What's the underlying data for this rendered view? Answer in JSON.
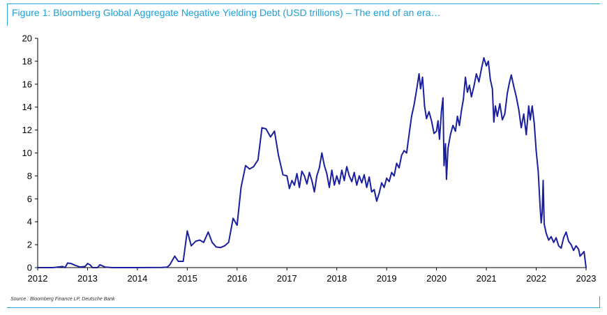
{
  "title": "Figure 1: Bloomberg Global Aggregate Negative Yielding Debt (USD trillions) – The end of an era…",
  "source": "Source : Bloomberg Finance LP, Deutsche Bank",
  "colors": {
    "line": "#1a1f9e",
    "accent": "#1ba1d9",
    "axis": "#000000"
  },
  "chart_data": {
    "type": "line",
    "title": "Figure 1: Bloomberg Global Aggregate Negative Yielding Debt (USD trillions) – The end of an era…",
    "xlabel": "",
    "ylabel": "",
    "xlim": [
      2012,
      2023
    ],
    "ylim": [
      0,
      20
    ],
    "x_ticks": [
      2012,
      2013,
      2014,
      2015,
      2016,
      2017,
      2018,
      2019,
      2020,
      2021,
      2022,
      2023
    ],
    "y_ticks": [
      0,
      2,
      4,
      6,
      8,
      10,
      12,
      14,
      16,
      18,
      20
    ],
    "grid": false,
    "legend": "none",
    "series": [
      {
        "values": [
          [
            2012.0,
            0.0
          ],
          [
            2012.3,
            0.0
          ],
          [
            2012.4,
            0.05
          ],
          [
            2012.5,
            0.1
          ],
          [
            2012.55,
            0.0
          ],
          [
            2012.6,
            0.4
          ],
          [
            2012.67,
            0.35
          ],
          [
            2012.75,
            0.2
          ],
          [
            2012.85,
            0.05
          ],
          [
            2012.95,
            0.1
          ],
          [
            2013.0,
            0.35
          ],
          [
            2013.05,
            0.25
          ],
          [
            2013.1,
            0.0
          ],
          [
            2013.2,
            0.0
          ],
          [
            2013.25,
            0.25
          ],
          [
            2013.35,
            0.05
          ],
          [
            2013.5,
            0.0
          ],
          [
            2014.0,
            0.0
          ],
          [
            2014.5,
            0.02
          ],
          [
            2014.6,
            0.05
          ],
          [
            2014.65,
            0.25
          ],
          [
            2014.75,
            1.0
          ],
          [
            2014.82,
            0.55
          ],
          [
            2014.92,
            0.55
          ],
          [
            2015.0,
            3.2
          ],
          [
            2015.08,
            1.9
          ],
          [
            2015.17,
            2.3
          ],
          [
            2015.25,
            2.4
          ],
          [
            2015.33,
            2.2
          ],
          [
            2015.42,
            3.1
          ],
          [
            2015.5,
            2.2
          ],
          [
            2015.58,
            1.8
          ],
          [
            2015.67,
            1.75
          ],
          [
            2015.75,
            1.9
          ],
          [
            2015.83,
            2.2
          ],
          [
            2015.92,
            4.3
          ],
          [
            2016.0,
            3.7
          ],
          [
            2016.08,
            7.0
          ],
          [
            2016.17,
            8.9
          ],
          [
            2016.25,
            8.6
          ],
          [
            2016.33,
            8.8
          ],
          [
            2016.42,
            9.4
          ],
          [
            2016.5,
            12.2
          ],
          [
            2016.58,
            12.1
          ],
          [
            2016.67,
            11.4
          ],
          [
            2016.75,
            11.9
          ],
          [
            2016.83,
            9.8
          ],
          [
            2016.92,
            8.1
          ],
          [
            2017.0,
            8.0
          ],
          [
            2017.05,
            6.9
          ],
          [
            2017.1,
            7.6
          ],
          [
            2017.15,
            7.2
          ],
          [
            2017.2,
            8.2
          ],
          [
            2017.25,
            7.0
          ],
          [
            2017.3,
            8.4
          ],
          [
            2017.35,
            8.0
          ],
          [
            2017.4,
            7.3
          ],
          [
            2017.45,
            8.3
          ],
          [
            2017.5,
            7.6
          ],
          [
            2017.55,
            6.6
          ],
          [
            2017.6,
            8.0
          ],
          [
            2017.65,
            8.7
          ],
          [
            2017.7,
            10.0
          ],
          [
            2017.75,
            8.9
          ],
          [
            2017.8,
            8.2
          ],
          [
            2017.85,
            7.0
          ],
          [
            2017.9,
            8.5
          ],
          [
            2017.95,
            7.2
          ],
          [
            2018.0,
            8.0
          ],
          [
            2018.05,
            7.3
          ],
          [
            2018.1,
            8.5
          ],
          [
            2018.15,
            7.6
          ],
          [
            2018.2,
            8.8
          ],
          [
            2018.25,
            8.0
          ],
          [
            2018.3,
            7.5
          ],
          [
            2018.35,
            8.3
          ],
          [
            2018.4,
            7.2
          ],
          [
            2018.45,
            8.0
          ],
          [
            2018.5,
            7.4
          ],
          [
            2018.55,
            8.1
          ],
          [
            2018.6,
            7.0
          ],
          [
            2018.65,
            7.9
          ],
          [
            2018.7,
            6.6
          ],
          [
            2018.75,
            6.8
          ],
          [
            2018.8,
            5.8
          ],
          [
            2018.85,
            6.5
          ],
          [
            2018.9,
            7.4
          ],
          [
            2018.95,
            7.0
          ],
          [
            2019.0,
            7.8
          ],
          [
            2019.05,
            7.5
          ],
          [
            2019.1,
            8.3
          ],
          [
            2019.15,
            8.0
          ],
          [
            2019.2,
            9.1
          ],
          [
            2019.25,
            8.7
          ],
          [
            2019.3,
            9.8
          ],
          [
            2019.35,
            10.2
          ],
          [
            2019.4,
            10.0
          ],
          [
            2019.45,
            11.6
          ],
          [
            2019.5,
            13.2
          ],
          [
            2019.55,
            14.2
          ],
          [
            2019.6,
            15.5
          ],
          [
            2019.65,
            16.9
          ],
          [
            2019.68,
            15.6
          ],
          [
            2019.72,
            16.6
          ],
          [
            2019.76,
            14.1
          ],
          [
            2019.8,
            13.0
          ],
          [
            2019.85,
            13.6
          ],
          [
            2019.9,
            12.8
          ],
          [
            2019.95,
            11.7
          ],
          [
            2020.0,
            11.9
          ],
          [
            2020.03,
            12.8
          ],
          [
            2020.06,
            11.2
          ],
          [
            2020.1,
            13.7
          ],
          [
            2020.13,
            14.8
          ],
          [
            2020.15,
            8.9
          ],
          [
            2020.18,
            10.8
          ],
          [
            2020.2,
            7.7
          ],
          [
            2020.23,
            10.4
          ],
          [
            2020.28,
            11.6
          ],
          [
            2020.33,
            12.4
          ],
          [
            2020.38,
            11.9
          ],
          [
            2020.42,
            13.2
          ],
          [
            2020.46,
            12.4
          ],
          [
            2020.5,
            13.7
          ],
          [
            2020.54,
            14.7
          ],
          [
            2020.58,
            16.6
          ],
          [
            2020.62,
            15.3
          ],
          [
            2020.66,
            15.9
          ],
          [
            2020.7,
            14.9
          ],
          [
            2020.75,
            15.8
          ],
          [
            2020.8,
            16.9
          ],
          [
            2020.85,
            16.2
          ],
          [
            2020.9,
            17.3
          ],
          [
            2020.95,
            18.3
          ],
          [
            2021.0,
            17.6
          ],
          [
            2021.04,
            18.0
          ],
          [
            2021.08,
            16.4
          ],
          [
            2021.12,
            15.6
          ],
          [
            2021.15,
            12.7
          ],
          [
            2021.18,
            14.1
          ],
          [
            2021.22,
            13.2
          ],
          [
            2021.27,
            14.3
          ],
          [
            2021.32,
            12.9
          ],
          [
            2021.37,
            13.4
          ],
          [
            2021.42,
            15.2
          ],
          [
            2021.46,
            16.1
          ],
          [
            2021.5,
            16.8
          ],
          [
            2021.55,
            15.8
          ],
          [
            2021.6,
            14.9
          ],
          [
            2021.65,
            13.8
          ],
          [
            2021.7,
            12.2
          ],
          [
            2021.75,
            13.4
          ],
          [
            2021.8,
            11.6
          ],
          [
            2021.85,
            14.1
          ],
          [
            2021.88,
            12.9
          ],
          [
            2021.92,
            14.1
          ],
          [
            2021.96,
            12.6
          ],
          [
            2022.0,
            10.2
          ],
          [
            2022.04,
            8.4
          ],
          [
            2022.08,
            5.1
          ],
          [
            2022.1,
            3.9
          ],
          [
            2022.12,
            4.8
          ],
          [
            2022.14,
            7.6
          ],
          [
            2022.16,
            3.8
          ],
          [
            2022.2,
            3.0
          ],
          [
            2022.25,
            2.4
          ],
          [
            2022.3,
            2.7
          ],
          [
            2022.35,
            2.2
          ],
          [
            2022.4,
            2.6
          ],
          [
            2022.45,
            1.9
          ],
          [
            2022.5,
            1.7
          ],
          [
            2022.55,
            2.6
          ],
          [
            2022.6,
            3.1
          ],
          [
            2022.65,
            2.3
          ],
          [
            2022.7,
            2.0
          ],
          [
            2022.75,
            1.5
          ],
          [
            2022.8,
            1.9
          ],
          [
            2022.85,
            1.6
          ],
          [
            2022.88,
            1.0
          ],
          [
            2022.92,
            1.2
          ],
          [
            2022.96,
            1.4
          ],
          [
            2023.0,
            0.0
          ]
        ]
      }
    ]
  }
}
